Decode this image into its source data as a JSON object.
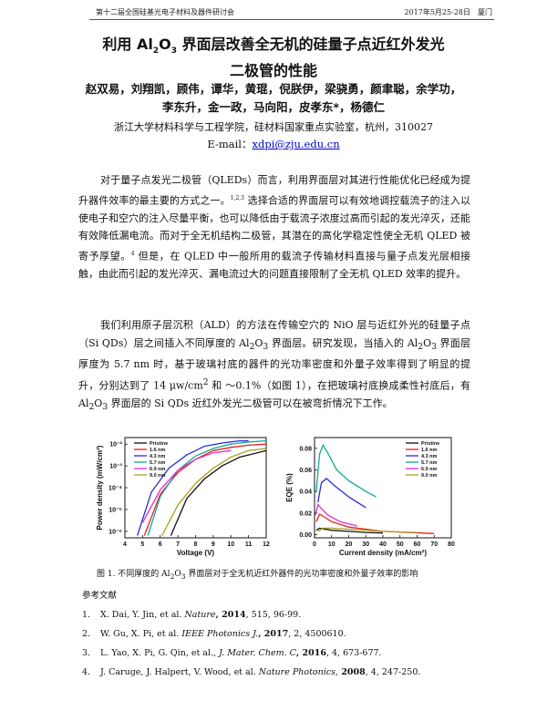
{
  "header": {
    "left": "第十二届全国硅基光电子材料及器件研讨会",
    "right": "2017年5月25-28日　厦门"
  },
  "title": {
    "line1_pre": "利用 Al",
    "line1_sub1": "2",
    "line1_mid": "O",
    "line1_sub2": "3",
    "line1_post": " 界面层改善全无机的硅量子点近红外发光",
    "line2": "二极管的性能"
  },
  "authors": {
    "line1": "赵双易，刘翔凯，顾伟，谭华，黄琨，倪朕伊，梁骁勇，颜聿聪，余学功，",
    "line2": "李东升，金一政，马向阳，皮孝东*，杨德仁"
  },
  "affiliation": "浙江大学材料科学与工程学院，硅材料国家重点实验室，杭州，310027",
  "email": {
    "label": "E-mail：",
    "address": "xdpi@zju.edu.cn"
  },
  "body": {
    "p1_a": "对于量子点发光二极管（QLEDs）而言，利用界面层对其进行性能优化已经成为提升器件效率的最主要的方式之一。",
    "p1_ref1": "1,2,3",
    "p1_b": " 选择合适的界面层可以有效地调控载流子的注入以使电子和空穴的注入尽量平衡，也可以降低由于载流子浓度过高而引起的发光淬灭，还能有效降低漏电流。而对于全无机结构二极管，其潜在的高化学稳定性使全无机 QLED 被寄予厚望。",
    "p1_ref2": "4",
    "p1_c": " 但是，在 QLED 中一般所用的载流子传输材料直接与量子点发光层相接触，由此而引起的发光淬灭、漏电流过大的问题直接限制了全无机 QLED 效率的提升。",
    "p2_a": "我们利用原子层沉积（ALD）的方法在传输空穴的 NiO 层与近红外光的硅量子点（Si QDs）层之间插入不同厚度的 Al",
    "p2_b": "O",
    "p2_c": " 界面层。研究发现，当插入的 Al",
    "p2_d": "O",
    "p2_e": " 界面层厚度为 5.7 nm 时，基于玻璃衬底的器件的光功率密度和外量子效率得到了明显的提升，分别达到了 14 μw/cm",
    "p2_f": " 和 ～0.1%（如图 1），在把玻璃衬底换成柔性衬底后，有 Al",
    "p2_g": "O",
    "p2_h": " 界面层的 Si QDs 近红外发光二极管可以在被弯折情况下工作。",
    "sub2": "2",
    "sub3": "3",
    "sup2": "2",
    "bold_pct": "～0.1%"
  },
  "figure": {
    "caption_a": "图 1.  不同厚度的 Al",
    "caption_b": "O",
    "caption_c": " 界面层对于全无机近红外器件的光功率密度和外量子效率的影响"
  },
  "chart_data": [
    {
      "type": "line",
      "xlabel": "Voltage (V)",
      "ylabel": "Power density (mW/cm²)",
      "xlim": [
        4,
        12
      ],
      "y_scale": "log",
      "xticks": [
        "4",
        "5",
        "6",
        "7",
        "8",
        "9",
        "10",
        "11",
        "12"
      ],
      "yticks": [
        "10⁻⁶",
        "10⁻⁵",
        "10⁻⁴",
        "10⁻³",
        "10⁻²"
      ],
      "legend_position": "top-left",
      "series": [
        {
          "name": "Pristine",
          "color": "#111111",
          "x": [
            6.6,
            7.5,
            8.5,
            9.5,
            10.5,
            11.5,
            12
          ],
          "y": [
            -6.2,
            -4.5,
            -3.6,
            -3.0,
            -2.6,
            -2.4,
            -2.3
          ]
        },
        {
          "name": "1.6 nm",
          "color": "#e8201c",
          "x": [
            5.1,
            6,
            7,
            8,
            9,
            10,
            11,
            12
          ],
          "y": [
            -6.2,
            -4.3,
            -3.3,
            -2.7,
            -2.3,
            -2.15,
            -2.05,
            -2.0
          ]
        },
        {
          "name": "4.3 nm",
          "color": "#2a2ae0",
          "x": [
            4.7,
            5.5,
            6.5,
            7.5,
            8.5,
            9.5,
            10.5,
            11
          ],
          "y": [
            -6.2,
            -4.2,
            -3.1,
            -2.5,
            -2.1,
            -1.95,
            -1.85,
            -1.85
          ]
        },
        {
          "name": "5.7 nm",
          "color": "#12a894",
          "x": [
            5.3,
            6,
            7,
            8,
            9,
            10,
            11,
            12
          ],
          "y": [
            -6.2,
            -4.4,
            -3.2,
            -2.55,
            -2.2,
            -2.0,
            -1.9,
            -1.85
          ]
        },
        {
          "name": "6.9 nm",
          "color": "#e62ad0",
          "x": [
            5.0,
            6,
            7,
            8,
            9,
            10
          ],
          "y": [
            -5.6,
            -4.1,
            -3.2,
            -2.7,
            -2.4,
            -2.3
          ]
        },
        {
          "name": "9.0 nm",
          "color": "#a8a020",
          "x": [
            6.1,
            7,
            8,
            9,
            10,
            11,
            12
          ],
          "y": [
            -6.2,
            -4.8,
            -3.8,
            -3.1,
            -2.6,
            -2.3,
            -2.2
          ]
        }
      ]
    },
    {
      "type": "line",
      "xlabel": "Current density (mA/cm²)",
      "ylabel": "EQE (%)",
      "xlim": [
        0,
        80
      ],
      "ylim": [
        0,
        0.09
      ],
      "xticks": [
        "0",
        "10",
        "20",
        "30",
        "40",
        "50",
        "60",
        "70",
        "80"
      ],
      "yticks": [
        "0.00",
        "0.02",
        "0.04",
        "0.06",
        "0.08"
      ],
      "legend_position": "top-right",
      "series": [
        {
          "name": "Pristine",
          "color": "#111111",
          "x": [
            1,
            3,
            6,
            10,
            20,
            30,
            40
          ],
          "y": [
            0.004,
            0.006,
            0.005,
            0.004,
            0.003,
            0.002,
            0.0015
          ]
        },
        {
          "name": "1.6 nm",
          "color": "#e8201c",
          "x": [
            1,
            3,
            6,
            10,
            20,
            40,
            70
          ],
          "y": [
            0.012,
            0.019,
            0.016,
            0.012,
            0.007,
            0.003,
            0.001
          ]
        },
        {
          "name": "4.3 nm",
          "color": "#2a2ae0",
          "x": [
            2,
            4,
            7,
            12,
            20,
            30
          ],
          "y": [
            0.03,
            0.048,
            0.052,
            0.045,
            0.035,
            0.025
          ]
        },
        {
          "name": "5.7 nm",
          "color": "#12a894",
          "x": [
            1,
            3,
            5,
            8,
            13,
            20,
            30,
            36
          ],
          "y": [
            0.04,
            0.075,
            0.083,
            0.075,
            0.06,
            0.05,
            0.04,
            0.035
          ]
        },
        {
          "name": "6.9 nm",
          "color": "#e62ad0",
          "x": [
            0.5,
            2,
            4,
            8,
            15,
            25
          ],
          "y": [
            0.018,
            0.028,
            0.024,
            0.018,
            0.012,
            0.008
          ]
        },
        {
          "name": "9.0 nm",
          "color": "#a8a020",
          "x": [
            2,
            5,
            10,
            20,
            40,
            60
          ],
          "y": [
            0.003,
            0.006,
            0.006,
            0.005,
            0.003,
            0.002
          ]
        }
      ]
    }
  ],
  "references": {
    "heading": "参考文献",
    "items": [
      {
        "num": "1.",
        "text_a": "X. Dai, Y. Jin, et al. ",
        "journal": "Nature",
        "year": ", 2014",
        "rest": ", 515, 96-99."
      },
      {
        "num": "2.",
        "text_a": "W. Gu, X. Pi, et al. ",
        "journal": "IEEE Photonics J.",
        "year": ", 2017",
        "rest": ", 2, 4500610."
      },
      {
        "num": "3.",
        "text_a": "L. Yao, X. Pi, G. Qin, et al., ",
        "journal": "J. Mater. Chem. C",
        "year": ", 2016",
        "rest": ", 4, 673-677."
      },
      {
        "num": "4.",
        "text_a": "J. Caruge, J. Halpert, V. Wood, et al. ",
        "journal": "Nature Photonics,",
        "year": " 2008",
        "rest": ", 4, 247-250."
      }
    ]
  }
}
